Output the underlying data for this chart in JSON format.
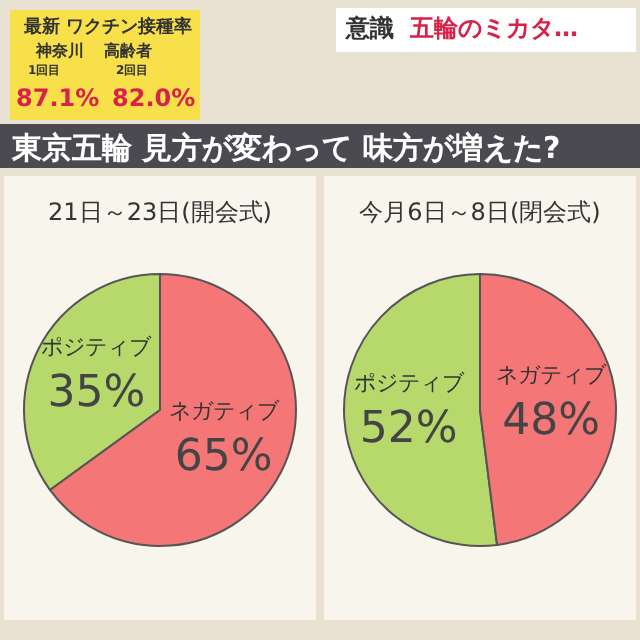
{
  "chart_data": [
    {
      "type": "other",
      "title": "東京五輪 見方が変わって 味方が増えた?",
      "annotations": [
        "最新 ワクチン接種率",
        "神奈川",
        "1回目",
        "87.1%",
        "高齢者",
        "2回目",
        "82.0%",
        "意識",
        "五輪のミカタ…"
      ]
    },
    {
      "type": "pie",
      "title": "21日～23日(開会式)",
      "categories": [
        "ポジティブ",
        "ネガティブ"
      ],
      "values": [
        35,
        65
      ],
      "colors": [
        "#b7d86b",
        "#f47676"
      ],
      "value_labels": [
        "35%",
        "65%"
      ]
    },
    {
      "type": "pie",
      "title": "今月6日～8日(閉会式)",
      "categories": [
        "ポジティブ",
        "ネガティブ"
      ],
      "values": [
        52,
        48
      ],
      "colors": [
        "#b7d86b",
        "#f47676"
      ],
      "value_labels": [
        "52%",
        "48%"
      ]
    }
  ]
}
